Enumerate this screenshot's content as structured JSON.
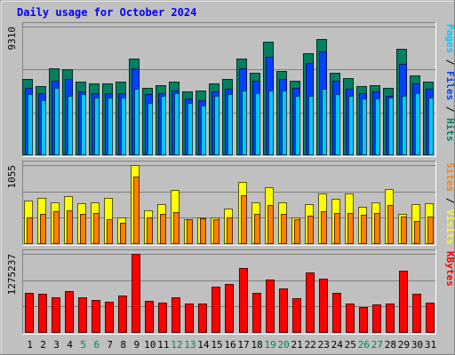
{
  "chart_data": {
    "type": "bar",
    "title": "Daily usage for October 2024",
    "days": [
      "1",
      "2",
      "3",
      "4",
      "5",
      "6",
      "7",
      "8",
      "9",
      "10",
      "11",
      "12",
      "13",
      "14",
      "15",
      "16",
      "17",
      "18",
      "19",
      "20",
      "21",
      "22",
      "23",
      "24",
      "25",
      "26",
      "27",
      "28",
      "29",
      "30",
      "31"
    ],
    "weekend_days": [
      "5",
      "6",
      "12",
      "13",
      "19",
      "20",
      "26",
      "27"
    ],
    "panels": [
      {
        "id": "pages-files-hits",
        "max_label": "9310",
        "ymax": 9310,
        "right_labels": [
          {
            "text": "Pages",
            "color": "#00c8ff"
          },
          {
            "text": " / ",
            "color": "#000000"
          },
          {
            "text": "Files",
            "color": "#0040ff"
          },
          {
            "text": " / ",
            "color": "#000000"
          },
          {
            "text": "Hits",
            "color": "#008060"
          }
        ],
        "series": [
          {
            "name": "Hits",
            "color": "#008060",
            "values": [
              5500,
              5000,
              6300,
              6200,
              5300,
              5200,
              5200,
              5300,
              7000,
              4900,
              5100,
              5300,
              4600,
              4700,
              5200,
              5500,
              7000,
              6000,
              8200,
              6100,
              5400,
              7400,
              8400,
              6000,
              5600,
              5000,
              5100,
              4900,
              7700,
              5800,
              5300
            ]
          },
          {
            "name": "Files",
            "color": "#0040ff",
            "values": [
              4900,
              4500,
              5400,
              5500,
              4600,
              4500,
              4500,
              4500,
              6300,
              4400,
              4500,
              4700,
              4100,
              4000,
              4600,
              4800,
              6300,
              5400,
              7100,
              5500,
              4900,
              6700,
              7500,
              5400,
              4800,
              4500,
              4600,
              4300,
              6600,
              5200,
              4800
            ]
          },
          {
            "name": "Pages",
            "color": "#00c8ff",
            "values": [
              4400,
              4000,
              4900,
              4300,
              4400,
              4200,
              4200,
              4200,
              4800,
              3800,
              4300,
              4500,
              3800,
              3600,
              4300,
              4400,
              4700,
              4500,
              4700,
              4700,
              4300,
              4300,
              4800,
              4400,
              4300,
              4100,
              4100,
              4200,
              4300,
              4500,
              4200
            ]
          }
        ]
      },
      {
        "id": "sites-visits",
        "max_label": "1055",
        "ymax": 1055,
        "right_labels": [
          {
            "text": "Sites",
            "color": "#ff8000"
          },
          {
            "text": " / ",
            "color": "#000000"
          },
          {
            "text": "Visits",
            "color": "#ffff00"
          }
        ],
        "series": [
          {
            "name": "Visits",
            "color": "#ffff00",
            "values": [
              580,
              620,
              560,
              640,
              540,
              560,
              620,
              360,
              1055,
              450,
              530,
              720,
              330,
              360,
              360,
              480,
              830,
              560,
              760,
              560,
              360,
              530,
              680,
              610,
              680,
              500,
              560,
              730,
              400,
              530,
              540
            ]
          },
          {
            "name": "Sites",
            "color": "#ff8000",
            "values": [
              360,
              400,
              440,
              450,
              400,
              410,
              330,
              290,
              900,
              360,
              400,
              430,
              330,
              340,
              330,
              360,
              650,
              400,
              520,
              400,
              330,
              380,
              440,
              410,
              420,
              390,
              420,
              520,
              370,
              310,
              370
            ]
          }
        ]
      },
      {
        "id": "kbytes",
        "max_label": "1275237",
        "ymax": 1275237,
        "right_labels": [
          {
            "text": "KBytes",
            "color": "#ff0000"
          }
        ],
        "series": [
          {
            "name": "KBytes",
            "color": "#ff0000",
            "values": [
              640000,
              630000,
              570000,
              680000,
              580000,
              530000,
              500000,
              600000,
              1275237,
              510000,
              490000,
              570000,
              470000,
              480000,
              750000,
              790000,
              1050000,
              650000,
              860000,
              720000,
              560000,
              970000,
              880000,
              650000,
              470000,
              420000,
              460000,
              480000,
              1000000,
              630000,
              490000
            ]
          }
        ]
      }
    ]
  }
}
